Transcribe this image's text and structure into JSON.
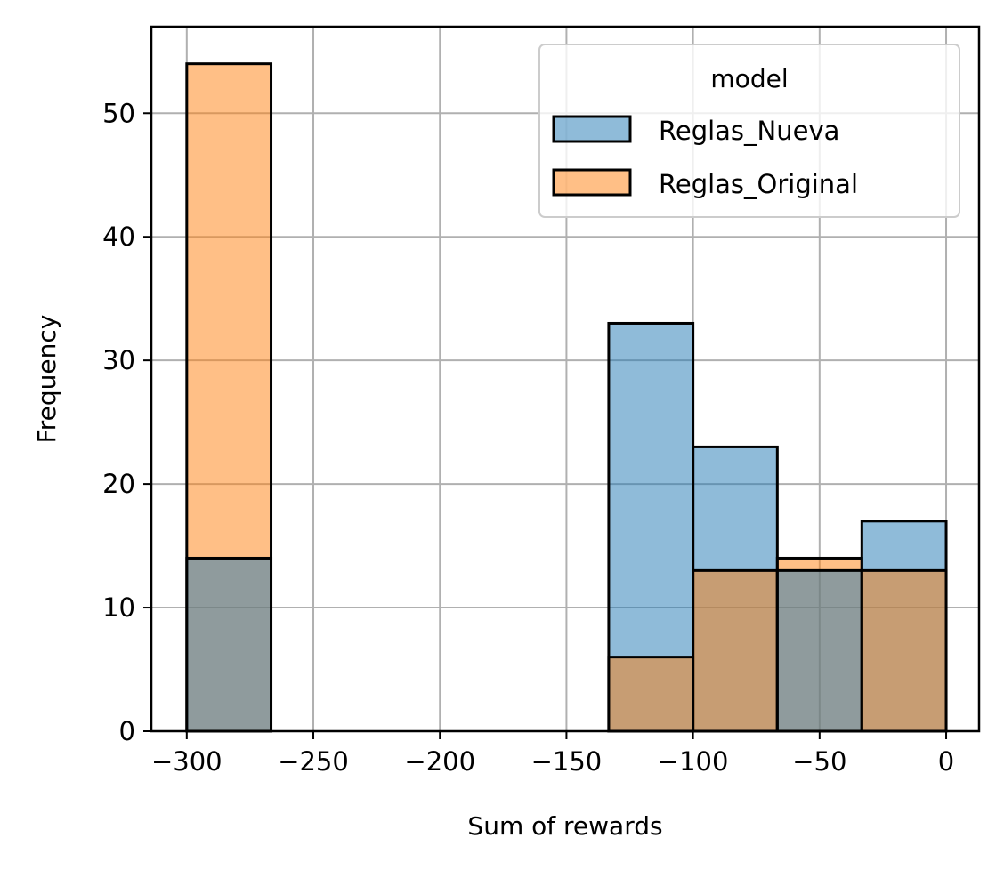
{
  "chart_data": {
    "type": "bar",
    "subtype": "overlaid-histogram",
    "title": "",
    "xlabel": "Sum of rewards",
    "ylabel": "Frequency",
    "xlim": [
      -314,
      13
    ],
    "ylim": [
      0,
      57
    ],
    "x_ticks": [
      -300,
      -250,
      -200,
      -150,
      -100,
      -50,
      0
    ],
    "x_tick_labels": [
      "−300",
      "−250",
      "−200",
      "−150",
      "−100",
      "−50",
      "0"
    ],
    "y_ticks": [
      0,
      10,
      20,
      30,
      40,
      50
    ],
    "y_tick_labels": [
      "0",
      "10",
      "20",
      "30",
      "40",
      "50"
    ],
    "grid": true,
    "bin_edges": [
      -300.0,
      -266.7,
      -233.3,
      -200.0,
      -166.7,
      -133.3,
      -100.0,
      -66.7,
      -33.3,
      0.0
    ],
    "series": [
      {
        "name": "Reglas_Nueva",
        "color": "#1f77b4",
        "counts": [
          14,
          0,
          0,
          0,
          0,
          33,
          23,
          13,
          17
        ]
      },
      {
        "name": "Reglas_Original",
        "color": "#ff7f0e",
        "counts": [
          54,
          0,
          0,
          0,
          0,
          6,
          13,
          14,
          13
        ]
      }
    ],
    "legend": {
      "title": "model",
      "position": "top-right",
      "entries": [
        "Reglas_Nueva",
        "Reglas_Original"
      ]
    }
  }
}
